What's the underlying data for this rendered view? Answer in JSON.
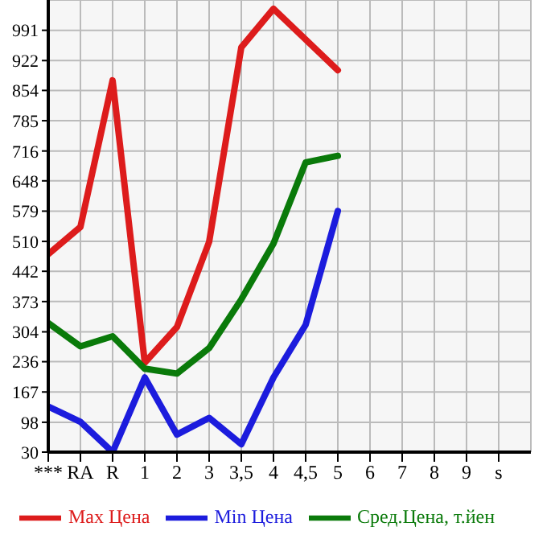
{
  "chart_data": {
    "type": "line",
    "categories": [
      "***",
      "RA",
      "R",
      "1",
      "2",
      "3",
      "3,5",
      "4",
      "4,5",
      "5",
      "6",
      "7",
      "8",
      "9",
      "s"
    ],
    "series": [
      {
        "name": "Max Цена",
        "color": "#dd1c1c",
        "values": [
          481,
          543,
          877,
          234,
          315,
          509,
          952,
          1040,
          970,
          900,
          null,
          null,
          null,
          null,
          null
        ]
      },
      {
        "name": "Min Цена",
        "color": "#1c1cdd",
        "values": [
          134,
          99,
          30,
          200,
          70,
          108,
          48,
          200,
          320,
          579,
          null,
          null,
          null,
          null,
          null
        ]
      },
      {
        "name": "Сред.Цена, т.йен",
        "color": "#0a7a0a",
        "values": [
          324,
          271,
          294,
          220,
          209,
          267,
          378,
          505,
          690,
          705,
          null,
          null,
          null,
          null,
          null
        ]
      }
    ],
    "ylim": [
      30,
      1060
    ],
    "yticks": [
      30,
      98,
      167,
      236,
      304,
      373,
      442,
      510,
      579,
      648,
      716,
      785,
      854,
      922,
      991
    ],
    "grid": true,
    "legend": "bottom",
    "marker": "none",
    "line_style": "solid"
  }
}
